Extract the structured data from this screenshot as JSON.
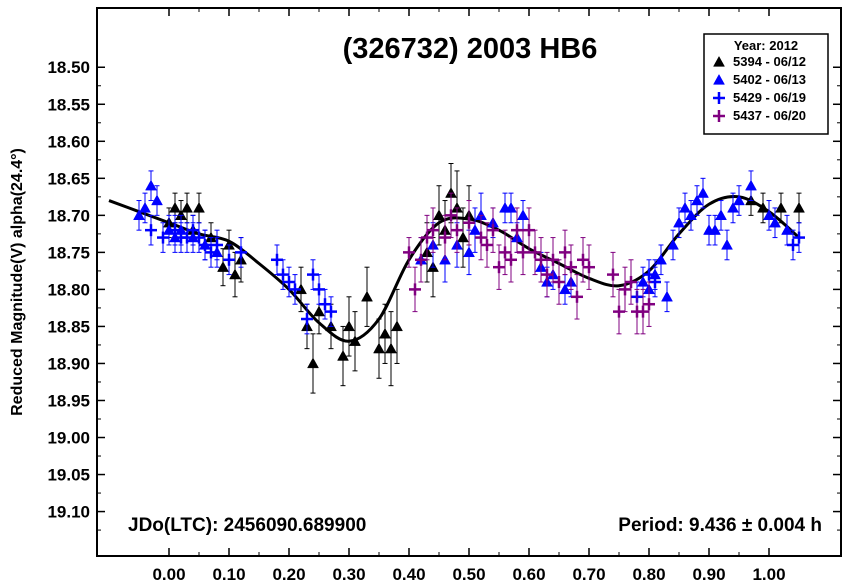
{
  "chart_data": {
    "type": "scatter",
    "title": "(326732) 2003 HB6",
    "xlabel": "",
    "ylabel": "Reduced Magnitude(V) alpha(24.4°)",
    "xlim": [
      -0.12,
      1.12
    ],
    "ylim": [
      19.16,
      18.42
    ],
    "y_inverted": true,
    "x_ticks": [
      "0.00",
      "0.10",
      "0.20",
      "0.30",
      "0.40",
      "0.50",
      "0.60",
      "0.70",
      "0.80",
      "0.90",
      "1.00"
    ],
    "y_ticks": [
      "18.50",
      "18.55",
      "18.60",
      "18.65",
      "18.70",
      "18.75",
      "18.80",
      "18.85",
      "18.90",
      "18.95",
      "19.00",
      "19.05",
      "19.10"
    ],
    "legend": {
      "position": "top-right",
      "title": "Year: 2012",
      "entries": [
        "5394 - 06/12",
        "5402 - 06/13",
        "5429 - 06/19",
        "5437 - 06/20"
      ]
    },
    "annotations": {
      "jdo": "JDo(LTC): 2456090.689900",
      "period": "Period: 9.436 ± 0.004 h"
    },
    "fit_curve": {
      "x": [
        -0.1,
        0.0,
        0.05,
        0.1,
        0.15,
        0.2,
        0.25,
        0.3,
        0.35,
        0.4,
        0.45,
        0.5,
        0.55,
        0.6,
        0.65,
        0.7,
        0.75,
        0.8,
        0.85,
        0.9,
        0.95,
        1.0,
        1.05
      ],
      "y": [
        18.68,
        18.71,
        18.725,
        18.735,
        18.765,
        18.8,
        18.845,
        18.87,
        18.84,
        18.76,
        18.71,
        18.705,
        18.72,
        18.745,
        18.765,
        18.785,
        18.795,
        18.775,
        18.725,
        18.685,
        18.675,
        18.695,
        18.73
      ]
    },
    "series": [
      {
        "name": "5394 - 06/12",
        "marker": "triangle",
        "color": "#000000",
        "points": [
          [
            0.0,
            18.71,
            0.02
          ],
          [
            0.01,
            18.69,
            0.02
          ],
          [
            0.02,
            18.7,
            0.02
          ],
          [
            0.03,
            18.69,
            0.02
          ],
          [
            0.04,
            18.72,
            0.02
          ],
          [
            0.05,
            18.69,
            0.02
          ],
          [
            0.07,
            18.73,
            0.02
          ],
          [
            0.09,
            18.77,
            0.025
          ],
          [
            0.1,
            18.74,
            0.02
          ],
          [
            0.11,
            18.78,
            0.03
          ],
          [
            0.12,
            18.76,
            0.03
          ],
          [
            0.22,
            18.8,
            0.03
          ],
          [
            0.23,
            18.85,
            0.03
          ],
          [
            0.24,
            18.9,
            0.04
          ],
          [
            0.25,
            18.83,
            0.03
          ],
          [
            0.27,
            18.85,
            0.03
          ],
          [
            0.29,
            18.89,
            0.04
          ],
          [
            0.3,
            18.85,
            0.04
          ],
          [
            0.31,
            18.87,
            0.04
          ],
          [
            0.33,
            18.81,
            0.04
          ],
          [
            0.35,
            18.88,
            0.04
          ],
          [
            0.36,
            18.86,
            0.04
          ],
          [
            0.37,
            18.88,
            0.05
          ],
          [
            0.38,
            18.85,
            0.05
          ],
          [
            0.43,
            18.75,
            0.04
          ],
          [
            0.44,
            18.77,
            0.04
          ],
          [
            0.45,
            18.7,
            0.04
          ],
          [
            0.46,
            18.72,
            0.04
          ],
          [
            0.47,
            18.67,
            0.04
          ],
          [
            0.48,
            18.69,
            0.05
          ],
          [
            0.49,
            18.73,
            0.04
          ],
          [
            0.5,
            18.7,
            0.04
          ],
          [
            0.97,
            18.68,
            0.02
          ],
          [
            0.99,
            18.69,
            0.02
          ],
          [
            1.02,
            18.69,
            0.02
          ],
          [
            1.05,
            18.69,
            0.02
          ]
        ]
      },
      {
        "name": "5402 - 06/13",
        "marker": "triangle",
        "color": "#0000ff",
        "points": [
          [
            -0.05,
            18.7,
            0.02
          ],
          [
            -0.04,
            18.69,
            0.02
          ],
          [
            -0.03,
            18.66,
            0.02
          ],
          [
            -0.02,
            18.68,
            0.02
          ],
          [
            0.0,
            18.72,
            0.02
          ],
          [
            0.01,
            18.73,
            0.02
          ],
          [
            0.02,
            18.72,
            0.02
          ],
          [
            0.04,
            18.73,
            0.02
          ],
          [
            0.06,
            18.74,
            0.02
          ],
          [
            0.08,
            18.75,
            0.02
          ],
          [
            0.42,
            18.76,
            0.03
          ],
          [
            0.44,
            18.74,
            0.03
          ],
          [
            0.46,
            18.76,
            0.03
          ],
          [
            0.48,
            18.74,
            0.03
          ],
          [
            0.5,
            18.75,
            0.03
          ],
          [
            0.51,
            18.72,
            0.03
          ],
          [
            0.52,
            18.7,
            0.03
          ],
          [
            0.54,
            18.71,
            0.02
          ],
          [
            0.56,
            18.69,
            0.02
          ],
          [
            0.57,
            18.69,
            0.02
          ],
          [
            0.58,
            18.73,
            0.02
          ],
          [
            0.59,
            18.7,
            0.02
          ],
          [
            0.62,
            18.77,
            0.02
          ],
          [
            0.63,
            18.79,
            0.02
          ],
          [
            0.64,
            18.78,
            0.02
          ],
          [
            0.66,
            18.8,
            0.02
          ],
          [
            0.67,
            18.79,
            0.02
          ],
          [
            0.79,
            18.79,
            0.02
          ],
          [
            0.8,
            18.8,
            0.02
          ],
          [
            0.81,
            18.78,
            0.02
          ],
          [
            0.82,
            18.76,
            0.02
          ],
          [
            0.83,
            18.81,
            0.02
          ],
          [
            0.84,
            18.74,
            0.02
          ],
          [
            0.85,
            18.71,
            0.02
          ],
          [
            0.86,
            18.69,
            0.02
          ],
          [
            0.87,
            18.7,
            0.02
          ],
          [
            0.88,
            18.68,
            0.02
          ],
          [
            0.89,
            18.67,
            0.02
          ],
          [
            0.9,
            18.72,
            0.02
          ],
          [
            0.91,
            18.72,
            0.02
          ],
          [
            0.92,
            18.7,
            0.02
          ],
          [
            0.93,
            18.74,
            0.02
          ],
          [
            0.94,
            18.69,
            0.02
          ],
          [
            0.95,
            18.68,
            0.02
          ],
          [
            0.97,
            18.66,
            0.02
          ],
          [
            1.0,
            18.7,
            0.02
          ],
          [
            1.01,
            18.71,
            0.02
          ],
          [
            1.03,
            18.72,
            0.02
          ]
        ]
      },
      {
        "name": "5429 - 06/19",
        "marker": "plus",
        "color": "#0000ff",
        "points": [
          [
            -0.03,
            18.72,
            0.02
          ],
          [
            -0.01,
            18.73,
            0.02
          ],
          [
            0.01,
            18.72,
            0.02
          ],
          [
            0.02,
            18.73,
            0.02
          ],
          [
            0.03,
            18.73,
            0.02
          ],
          [
            0.04,
            18.72,
            0.02
          ],
          [
            0.05,
            18.73,
            0.02
          ],
          [
            0.06,
            18.74,
            0.02
          ],
          [
            0.07,
            18.75,
            0.02
          ],
          [
            0.08,
            18.74,
            0.02
          ],
          [
            0.1,
            18.76,
            0.02
          ],
          [
            0.12,
            18.75,
            0.02
          ],
          [
            0.18,
            18.76,
            0.02
          ],
          [
            0.19,
            18.78,
            0.02
          ],
          [
            0.2,
            18.79,
            0.02
          ],
          [
            0.21,
            18.8,
            0.02
          ],
          [
            0.23,
            18.84,
            0.02
          ],
          [
            0.24,
            18.78,
            0.02
          ],
          [
            0.25,
            18.8,
            0.02
          ],
          [
            0.26,
            18.82,
            0.02
          ],
          [
            0.27,
            18.83,
            0.02
          ],
          [
            0.78,
            18.81,
            0.02
          ],
          [
            0.8,
            18.78,
            0.02
          ],
          [
            0.81,
            18.79,
            0.02
          ],
          [
            1.04,
            18.74,
            0.02
          ],
          [
            1.05,
            18.73,
            0.02
          ]
        ]
      },
      {
        "name": "5437 - 06/20",
        "marker": "plus",
        "color": "#800080",
        "points": [
          [
            0.4,
            18.75,
            0.02
          ],
          [
            0.41,
            18.8,
            0.03
          ],
          [
            0.42,
            18.76,
            0.03
          ],
          [
            0.43,
            18.73,
            0.03
          ],
          [
            0.44,
            18.72,
            0.03
          ],
          [
            0.46,
            18.73,
            0.03
          ],
          [
            0.47,
            18.7,
            0.03
          ],
          [
            0.48,
            18.72,
            0.03
          ],
          [
            0.5,
            18.71,
            0.03
          ],
          [
            0.52,
            18.73,
            0.03
          ],
          [
            0.53,
            18.74,
            0.03
          ],
          [
            0.54,
            18.72,
            0.03
          ],
          [
            0.55,
            18.77,
            0.03
          ],
          [
            0.56,
            18.75,
            0.03
          ],
          [
            0.57,
            18.76,
            0.03
          ],
          [
            0.58,
            18.72,
            0.03
          ],
          [
            0.59,
            18.75,
            0.03
          ],
          [
            0.6,
            18.72,
            0.03
          ],
          [
            0.61,
            18.75,
            0.03
          ],
          [
            0.62,
            18.76,
            0.03
          ],
          [
            0.63,
            18.78,
            0.03
          ],
          [
            0.64,
            18.76,
            0.03
          ],
          [
            0.65,
            18.79,
            0.03
          ],
          [
            0.66,
            18.75,
            0.03
          ],
          [
            0.67,
            18.77,
            0.03
          ],
          [
            0.68,
            18.81,
            0.03
          ],
          [
            0.69,
            18.76,
            0.03
          ],
          [
            0.7,
            18.77,
            0.03
          ],
          [
            0.74,
            18.78,
            0.03
          ],
          [
            0.75,
            18.83,
            0.03
          ],
          [
            0.76,
            18.8,
            0.03
          ],
          [
            0.77,
            18.79,
            0.03
          ],
          [
            0.78,
            18.83,
            0.03
          ],
          [
            0.79,
            18.83,
            0.03
          ],
          [
            0.8,
            18.82,
            0.03
          ]
        ]
      }
    ]
  }
}
